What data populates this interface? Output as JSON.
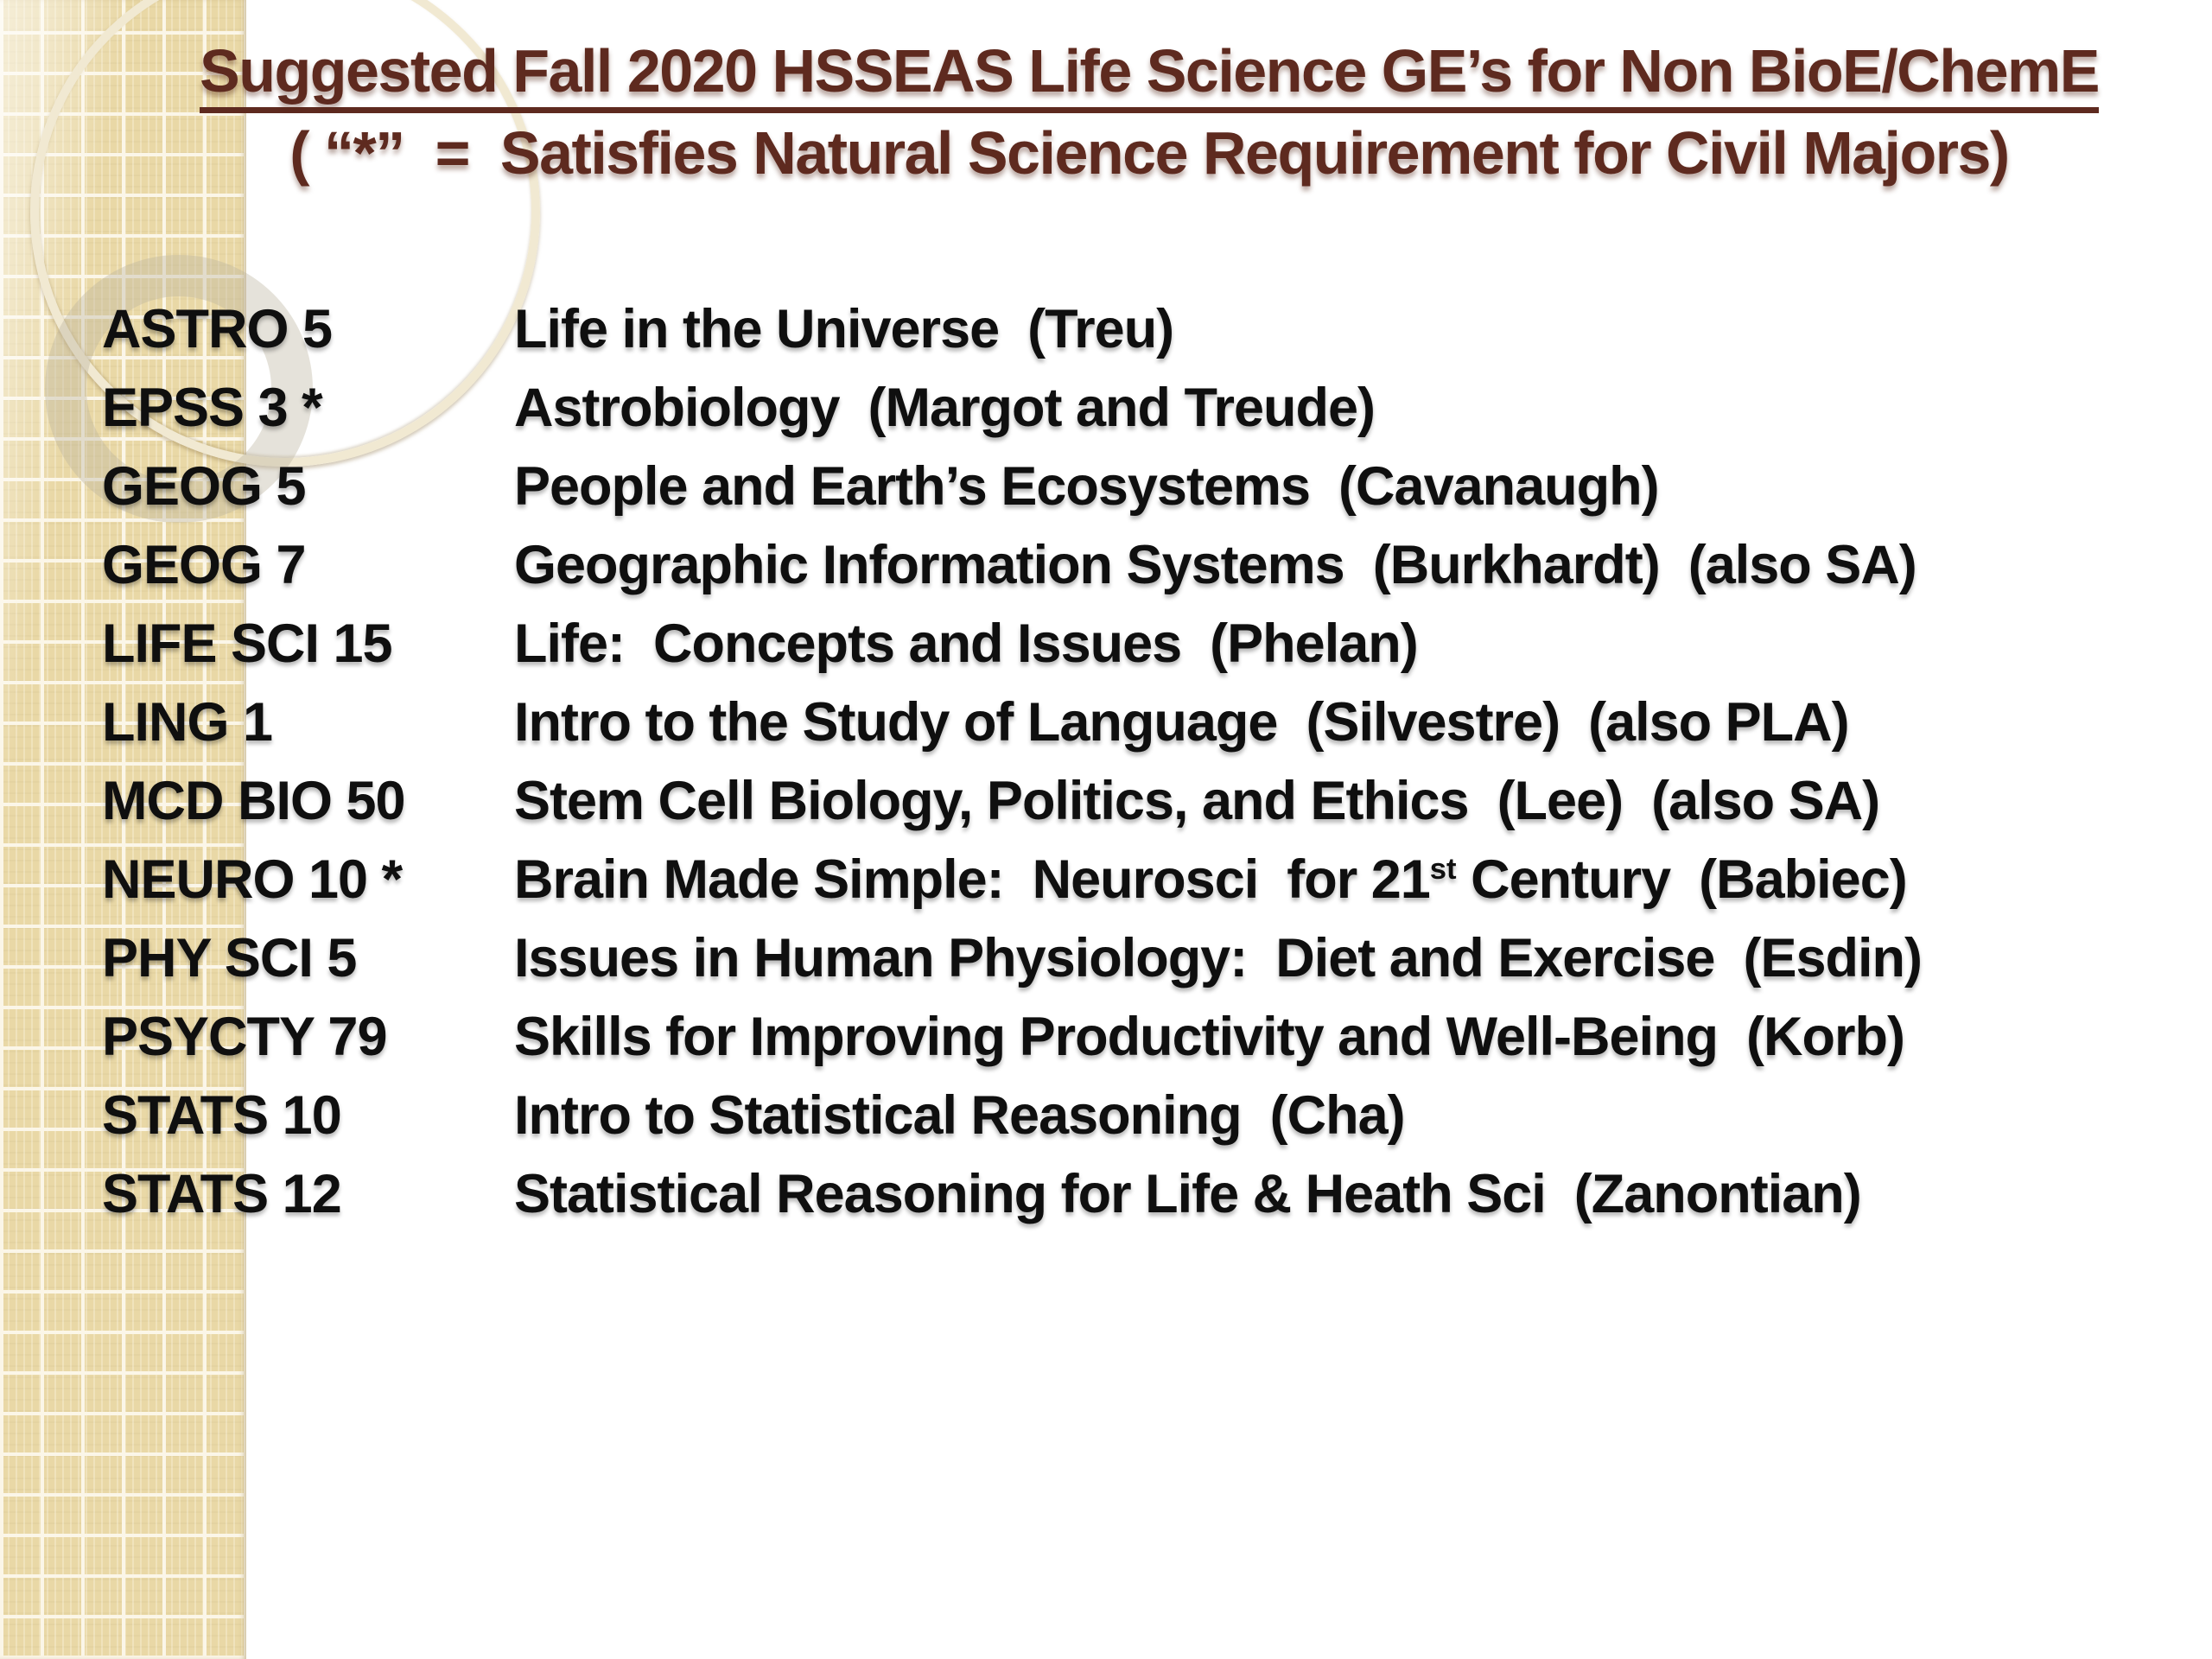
{
  "header": {
    "title_line1": "Suggested Fall 2020 HSSEAS Life Science GE’s for Non BioE/ChemE",
    "title_line2": "( “*”  =  Satisfies Natural Science Requirement for Civil Majors)"
  },
  "courses": [
    {
      "code": "ASTRO 5",
      "desc": [
        {
          "t": "Life in the Universe  (Treu)"
        }
      ]
    },
    {
      "code": "EPSS 3 *",
      "desc": [
        {
          "t": "Astrobiology  (Margot and Treude)"
        }
      ]
    },
    {
      "code": "GEOG 5",
      "desc": [
        {
          "t": "People and Earth’s Ecosystems  (Cavanaugh)"
        }
      ]
    },
    {
      "code": "GEOG 7",
      "desc": [
        {
          "t": "Geographic Information Systems  (Burkhardt)  (also SA)"
        }
      ]
    },
    {
      "code": "LIFE SCI 15",
      "desc": [
        {
          "t": "Life:  Concepts and Issues  (Phelan)"
        }
      ]
    },
    {
      "code": "LING 1",
      "desc": [
        {
          "t": "Intro to the Study of Language  (Silvestre)  (also PLA)"
        }
      ]
    },
    {
      "code": "MCD BIO 50",
      "desc": [
        {
          "t": "Stem Cell Biology, Politics, and Ethics  (Lee)  (also SA)"
        }
      ]
    },
    {
      "code": "NEURO 10 *",
      "desc": [
        {
          "t": "Brain Made Simple:  Neurosci  for 21"
        },
        {
          "t": "st",
          "sup": true
        },
        {
          "t": " Century  (Babiec)"
        }
      ]
    },
    {
      "code": "PHY SCI 5",
      "desc": [
        {
          "t": "Issues in Human Physiology:  Diet and Exercise  (Esdin)"
        }
      ]
    },
    {
      "code": "PSYCTY 79",
      "desc": [
        {
          "t": "Skills for Improving Productivity and Well-Being  (Korb)"
        }
      ]
    },
    {
      "code": "STATS 10",
      "desc": [
        {
          "t": "Intro to Statistical Reasoning  (Cha)"
        }
      ]
    },
    {
      "code": "STATS 12",
      "desc": [
        {
          "t": "Statistical Reasoning for Life & Heath Sci  (Zanontian)"
        }
      ]
    }
  ],
  "colors": {
    "title": "#5e2a1f",
    "body": "#0f0f0f",
    "strip": "#e9d8a6",
    "grid": "#fbf6e8",
    "circle": "#f1e9d2",
    "ring": "rgba(186,178,158,0.38)"
  }
}
